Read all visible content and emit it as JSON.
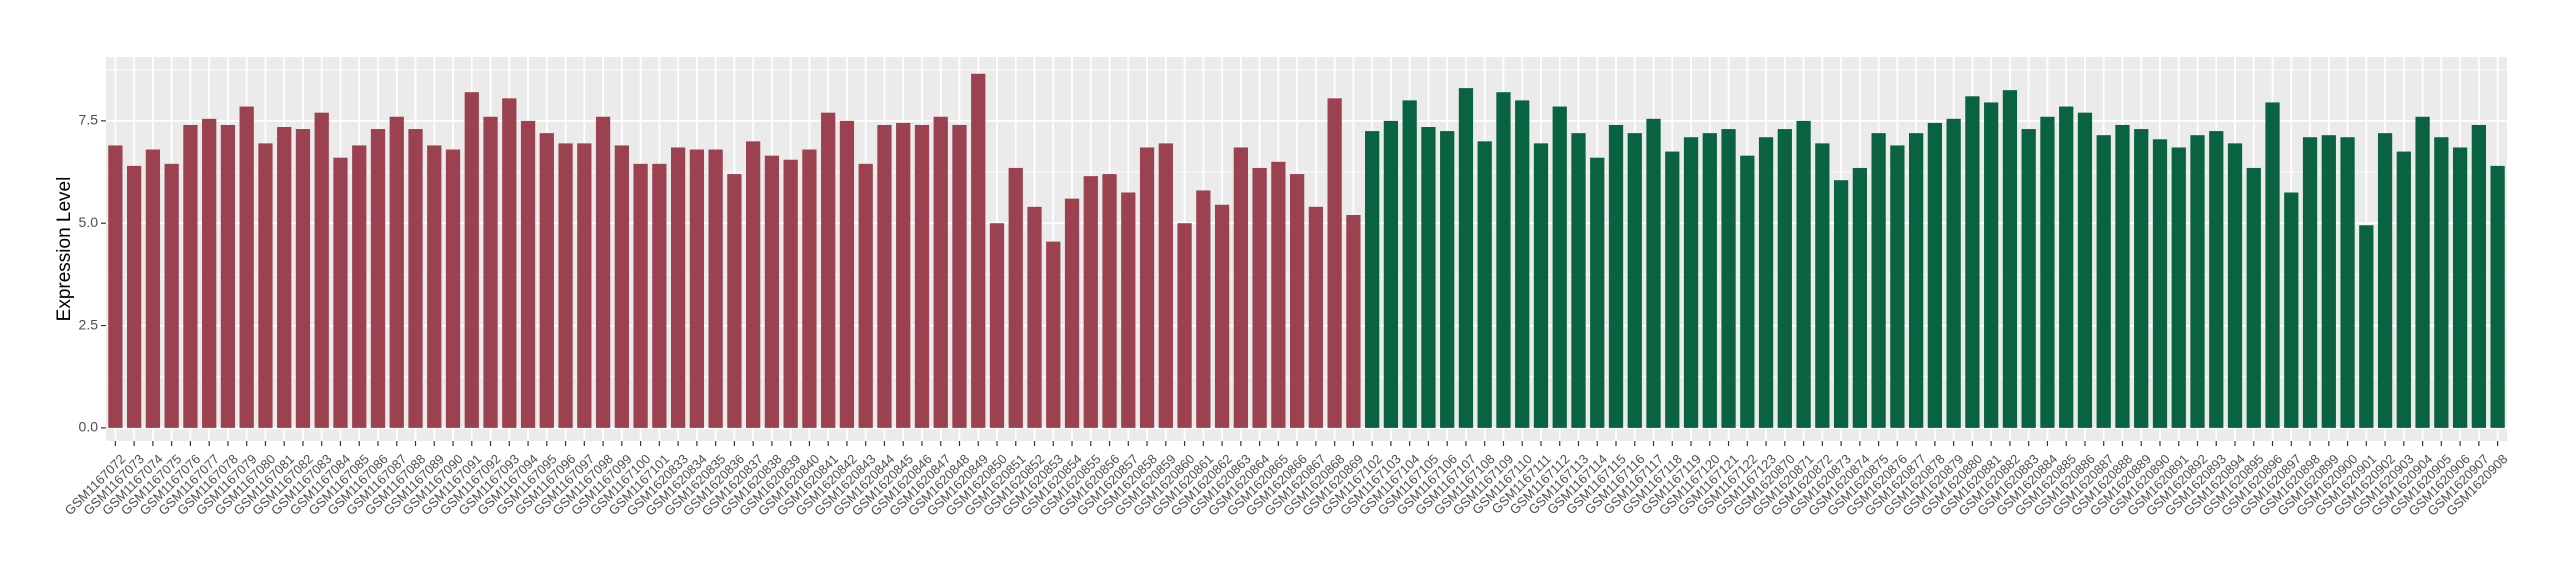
{
  "chart_data": {
    "type": "bar",
    "y_label": "Expression Level",
    "ylim": [
      -0.32,
      9.06
    ],
    "yticks": [
      {
        "value": 0,
        "label": "0.0"
      },
      {
        "value": 2.5,
        "label": "2.5"
      },
      {
        "value": 5,
        "label": "5.0"
      },
      {
        "value": 7.5,
        "label": "7.5"
      }
    ],
    "minor_yticks": [
      1.25,
      3.75,
      6.25,
      8.75
    ],
    "grid": true,
    "categories": [
      "GSM1167072",
      "GSM1167073",
      "GSM1167074",
      "GSM1167075",
      "GSM1167076",
      "GSM1167077",
      "GSM1167078",
      "GSM1167079",
      "GSM1167080",
      "GSM1167081",
      "GSM1167082",
      "GSM1167083",
      "GSM1167084",
      "GSM1167085",
      "GSM1167086",
      "GSM1167087",
      "GSM1167088",
      "GSM1167089",
      "GSM1167090",
      "GSM1167091",
      "GSM1167092",
      "GSM1167093",
      "GSM1167094",
      "GSM1167095",
      "GSM1167096",
      "GSM1167097",
      "GSM1167098",
      "GSM1167099",
      "GSM1167100",
      "GSM1167101",
      "GSM1620833",
      "GSM1620834",
      "GSM1620835",
      "GSM1620836",
      "GSM1620837",
      "GSM1620838",
      "GSM1620839",
      "GSM1620840",
      "GSM1620841",
      "GSM1620842",
      "GSM1620843",
      "GSM1620844",
      "GSM1620845",
      "GSM1620846",
      "GSM1620847",
      "GSM1620848",
      "GSM1620849",
      "GSM1620850",
      "GSM1620851",
      "GSM1620852",
      "GSM1620853",
      "GSM1620854",
      "GSM1620855",
      "GSM1620856",
      "GSM1620857",
      "GSM1620858",
      "GSM1620859",
      "GSM1620860",
      "GSM1620861",
      "GSM1620862",
      "GSM1620863",
      "GSM1620864",
      "GSM1620865",
      "GSM1620866",
      "GSM1620867",
      "GSM1620868",
      "GSM1620869",
      "GSM1167102",
      "GSM1167103",
      "GSM1167104",
      "GSM1167105",
      "GSM1167106",
      "GSM1167107",
      "GSM1167108",
      "GSM1167109",
      "GSM1167110",
      "GSM1167111",
      "GSM1167112",
      "GSM1167113",
      "GSM1167114",
      "GSM1167115",
      "GSM1167116",
      "GSM1167117",
      "GSM1167118",
      "GSM1167119",
      "GSM1167120",
      "GSM1167121",
      "GSM1167122",
      "GSM1167123",
      "GSM1620870",
      "GSM1620871",
      "GSM1620872",
      "GSM1620873",
      "GSM1620874",
      "GSM1620875",
      "GSM1620876",
      "GSM1620877",
      "GSM1620878",
      "GSM1620879",
      "GSM1620880",
      "GSM1620881",
      "GSM1620882",
      "GSM1620883",
      "GSM1620884",
      "GSM1620885",
      "GSM1620886",
      "GSM1620887",
      "GSM1620888",
      "GSM1620889",
      "GSM1620890",
      "GSM1620891",
      "GSM1620892",
      "GSM1620893",
      "GSM1620894",
      "GSM1620895",
      "GSM1620896",
      "GSM1620897",
      "GSM1620898",
      "GSM1620899",
      "GSM1620900",
      "GSM1620901",
      "GSM1620902",
      "GSM1620903",
      "GSM1620904",
      "GSM1620905",
      "GSM1620906",
      "GSM1620907",
      "GSM1620908"
    ],
    "values": [
      6.9,
      6.4,
      6.8,
      6.45,
      7.4,
      7.55,
      7.4,
      7.85,
      6.95,
      7.35,
      7.3,
      7.7,
      6.6,
      6.9,
      7.3,
      7.6,
      7.3,
      6.9,
      6.8,
      8.2,
      7.6,
      8.05,
      7.5,
      7.2,
      6.95,
      6.95,
      7.6,
      6.9,
      6.45,
      6.45,
      6.85,
      6.8,
      6.8,
      6.2,
      7.0,
      6.65,
      6.55,
      6.8,
      7.7,
      7.5,
      6.45,
      7.4,
      7.45,
      7.4,
      7.6,
      7.4,
      8.65,
      5.0,
      6.35,
      5.4,
      4.55,
      5.6,
      6.15,
      6.2,
      5.75,
      6.85,
      6.95,
      5.0,
      5.8,
      5.45,
      6.85,
      6.35,
      6.5,
      6.2,
      5.4,
      8.05,
      5.2,
      7.25,
      7.5,
      8.0,
      7.35,
      7.25,
      8.3,
      7.0,
      8.2,
      8.0,
      6.95,
      7.85,
      7.2,
      6.6,
      7.4,
      7.2,
      7.55,
      6.75,
      7.1,
      7.2,
      7.3,
      6.65,
      7.1,
      7.3,
      7.5,
      6.95,
      6.05,
      6.35,
      7.2,
      6.9,
      7.2,
      7.45,
      7.55,
      8.1,
      7.95,
      8.25,
      7.3,
      7.6,
      7.85,
      7.7,
      7.15,
      7.4,
      7.3,
      7.05,
      6.85,
      7.15,
      7.25,
      6.95,
      6.35,
      7.95,
      5.75,
      7.1,
      7.15,
      7.1,
      4.95,
      7.2,
      6.75,
      7.6,
      7.1,
      6.85,
      7.4,
      6.4
    ],
    "colors": [
      "#9b4150",
      "#9b4150",
      "#9b4150",
      "#9b4150",
      "#9b4150",
      "#9b4150",
      "#9b4150",
      "#9b4150",
      "#9b4150",
      "#9b4150",
      "#9b4150",
      "#9b4150",
      "#9b4150",
      "#9b4150",
      "#9b4150",
      "#9b4150",
      "#9b4150",
      "#9b4150",
      "#9b4150",
      "#9b4150",
      "#9b4150",
      "#9b4150",
      "#9b4150",
      "#9b4150",
      "#9b4150",
      "#9b4150",
      "#9b4150",
      "#9b4150",
      "#9b4150",
      "#9b4150",
      "#9b4150",
      "#9b4150",
      "#9b4150",
      "#9b4150",
      "#9b4150",
      "#9b4150",
      "#9b4150",
      "#9b4150",
      "#9b4150",
      "#9b4150",
      "#9b4150",
      "#9b4150",
      "#9b4150",
      "#9b4150",
      "#9b4150",
      "#9b4150",
      "#9b4150",
      "#9b4150",
      "#9b4150",
      "#9b4150",
      "#9b4150",
      "#9b4150",
      "#9b4150",
      "#9b4150",
      "#9b4150",
      "#9b4150",
      "#9b4150",
      "#9b4150",
      "#9b4150",
      "#9b4150",
      "#9b4150",
      "#9b4150",
      "#9b4150",
      "#9b4150",
      "#9b4150",
      "#9b4150",
      "#9b4150",
      "#0a6340",
      "#0a6340",
      "#0a6340",
      "#0a6340",
      "#0a6340",
      "#0a6340",
      "#0a6340",
      "#0a6340",
      "#0a6340",
      "#0a6340",
      "#0a6340",
      "#0a6340",
      "#0a6340",
      "#0a6340",
      "#0a6340",
      "#0a6340",
      "#0a6340",
      "#0a6340",
      "#0a6340",
      "#0a6340",
      "#0a6340",
      "#0a6340",
      "#0a6340",
      "#0a6340",
      "#0a6340",
      "#0a6340",
      "#0a6340",
      "#0a6340",
      "#0a6340",
      "#0a6340",
      "#0a6340",
      "#0a6340",
      "#0a6340",
      "#0a6340",
      "#0a6340",
      "#0a6340",
      "#0a6340",
      "#0a6340",
      "#0a6340",
      "#0a6340",
      "#0a6340",
      "#0a6340",
      "#0a6340",
      "#0a6340",
      "#0a6340",
      "#0a6340",
      "#0a6340",
      "#0a6340",
      "#0a6340",
      "#0a6340",
      "#0a6340",
      "#0a6340",
      "#0a6340",
      "#0a6340",
      "#0a6340",
      "#0a6340",
      "#0a6340",
      "#0a6340",
      "#0a6340",
      "#0a6340",
      "#0a6340"
    ]
  }
}
